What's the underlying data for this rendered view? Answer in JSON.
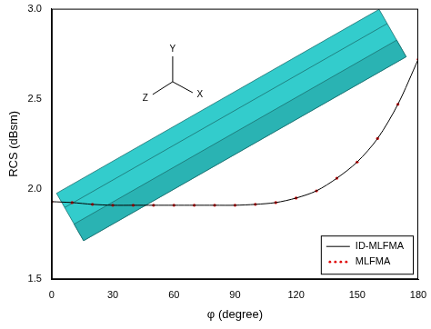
{
  "chart_data": {
    "type": "line",
    "x_label": "φ (degree)",
    "y_label": "RCS (dBsm)",
    "annotations": [
      "Y",
      "X",
      "Z"
    ],
    "x": [
      0,
      10,
      20,
      30,
      40,
      50,
      60,
      70,
      80,
      90,
      100,
      110,
      120,
      130,
      140,
      150,
      160,
      170,
      180
    ],
    "series": [
      {
        "name": "ID-MLFMA",
        "color": "#000000",
        "line_style": "solid",
        "marker": "none",
        "values": [
          1.93,
          1.925,
          1.915,
          1.91,
          1.91,
          1.91,
          1.91,
          1.91,
          1.91,
          1.91,
          1.915,
          1.925,
          1.95,
          1.99,
          2.06,
          2.15,
          2.28,
          2.47,
          2.72
        ]
      },
      {
        "name": "MLFMA",
        "color": "#e00000",
        "line_style": "none",
        "marker": "circle",
        "values": [
          1.93,
          1.925,
          1.915,
          1.91,
          1.91,
          1.91,
          1.91,
          1.91,
          1.91,
          1.91,
          1.915,
          1.925,
          1.95,
          1.99,
          2.06,
          2.15,
          2.28,
          2.47,
          2.72
        ]
      }
    ],
    "xlim": [
      0,
      180
    ],
    "xticks": [
      0,
      30,
      60,
      90,
      120,
      150,
      180
    ],
    "ylim": [
      1.5,
      3.0
    ],
    "yticks": [
      1.5,
      {
        "value": 2,
        "label": "2.0"
      },
      2.5,
      {
        "value": 3,
        "label": "3.0"
      }
    ],
    "grid": false,
    "legend": "lower right"
  }
}
